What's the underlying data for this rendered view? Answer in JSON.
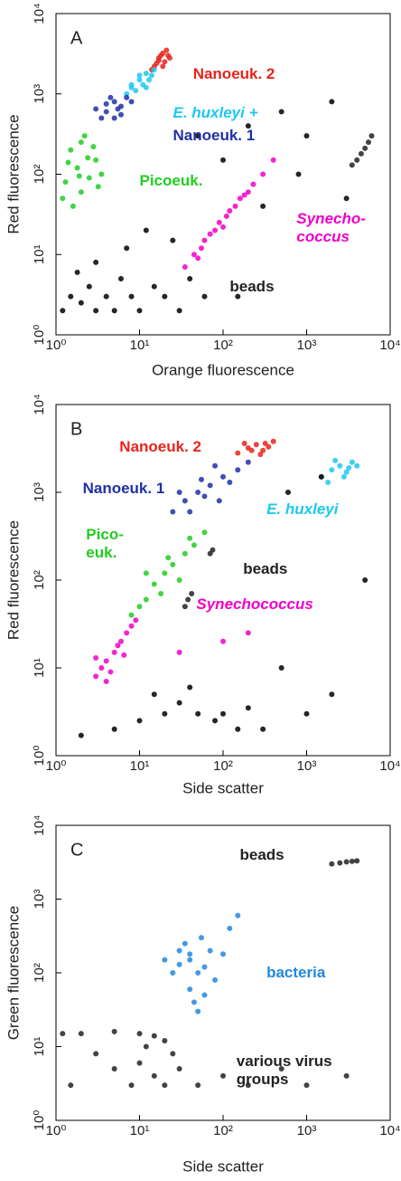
{
  "chart_data": [
    {
      "type": "scatter",
      "panel_label": "A",
      "xlabel": "Orange fluorescence",
      "ylabel": "Red fluorescence",
      "xscale": "log",
      "yscale": "log",
      "xlim": [
        1,
        10000
      ],
      "ylim": [
        1,
        10000
      ],
      "xticks": [
        {
          "value": 1,
          "label": "10⁰"
        },
        {
          "value": 10,
          "label": "10¹"
        },
        {
          "value": 100,
          "label": "10²"
        },
        {
          "value": 1000,
          "label": "10³"
        },
        {
          "value": 10000,
          "label": "10⁴"
        }
      ],
      "yticks": [
        {
          "value": 1,
          "label": "10⁰"
        },
        {
          "value": 10,
          "label": "10¹"
        },
        {
          "value": 100,
          "label": "10²"
        },
        {
          "value": 1000,
          "label": "10³"
        },
        {
          "value": 10000,
          "label": "10⁴"
        }
      ],
      "series": [
        {
          "name": "Nanoeuk. 2",
          "color": "#e8241c",
          "x": [
            15,
            17,
            19,
            20,
            16,
            18,
            22,
            14,
            21,
            17,
            19,
            23
          ],
          "y": [
            2200,
            2800,
            3200,
            2500,
            2400,
            3000,
            3000,
            2000,
            3500,
            2600,
            2200,
            2800
          ]
        },
        {
          "name": "E. huxleyi +",
          "color": "#1ec8f0",
          "font_style": "italic",
          "x": [
            8,
            10,
            12,
            9,
            11,
            14,
            7,
            13,
            10,
            15,
            8,
            12
          ],
          "y": [
            1300,
            1500,
            1800,
            1100,
            1300,
            1700,
            1000,
            1500,
            1700,
            2000,
            1200,
            1200
          ]
        },
        {
          "name": "Nanoeuk. 1",
          "color": "#2030a8",
          "x": [
            4,
            5,
            6,
            3.5,
            5,
            7,
            4.5,
            6,
            3,
            8,
            5.5,
            4
          ],
          "y": [
            600,
            800,
            700,
            500,
            500,
            900,
            900,
            550,
            650,
            800,
            650,
            750
          ]
        },
        {
          "name": "Picoeuk.",
          "color": "#22cc22",
          "x": [
            1.3,
            1.8,
            2.5,
            1.5,
            2.2,
            3,
            1.2,
            2,
            2.8,
            1.6,
            3.5,
            2.4,
            1.4,
            2,
            3.2,
            1.9
          ],
          "y": [
            80,
            120,
            90,
            200,
            300,
            150,
            50,
            60,
            220,
            40,
            100,
            160,
            140,
            250,
            70,
            95
          ]
        },
        {
          "name": "Synecho-coccus",
          "color": "#f000c8",
          "font_style": "italic",
          "x": [
            35,
            45,
            55,
            70,
            90,
            110,
            140,
            180,
            230,
            300,
            400,
            60,
            80,
            120,
            200,
            50,
            100,
            160
          ],
          "y": [
            7,
            10,
            12,
            18,
            25,
            30,
            40,
            55,
            75,
            100,
            150,
            15,
            20,
            35,
            60,
            9,
            22,
            50
          ]
        },
        {
          "name": "beads",
          "color": "#222222",
          "x": [
            3500,
            4000,
            4500,
            5000,
            5500,
            6000
          ],
          "y": [
            130,
            150,
            180,
            210,
            250,
            300
          ]
        },
        {
          "color": "#000000",
          "x": [
            1.2,
            1.5,
            2,
            3,
            2.5,
            4,
            5,
            6,
            1.8,
            8,
            3,
            10,
            15,
            20,
            30,
            7,
            12,
            25,
            40,
            50,
            100,
            200,
            500,
            300,
            800,
            1000,
            2000,
            3000,
            60,
            150
          ],
          "y": [
            2,
            3,
            2.5,
            2,
            4,
            3,
            2,
            5,
            6,
            3,
            8,
            2,
            4,
            3,
            2,
            12,
            20,
            15,
            5,
            300,
            150,
            400,
            600,
            40,
            100,
            300,
            800,
            50,
            3,
            3
          ]
        }
      ]
    },
    {
      "type": "scatter",
      "panel_label": "B",
      "xlabel": "Side scatter",
      "ylabel": "Red fluorescence",
      "xscale": "log",
      "yscale": "log",
      "xlim": [
        1,
        10000
      ],
      "ylim": [
        1,
        10000
      ],
      "xticks": [
        {
          "value": 1,
          "label": "10⁰"
        },
        {
          "value": 10,
          "label": "10¹"
        },
        {
          "value": 100,
          "label": "10²"
        },
        {
          "value": 1000,
          "label": "10³"
        },
        {
          "value": 10000,
          "label": "10⁴"
        }
      ],
      "yticks": [
        {
          "value": 1,
          "label": "10⁰"
        },
        {
          "value": 10,
          "label": "10¹"
        },
        {
          "value": 100,
          "label": "10²"
        },
        {
          "value": 1000,
          "label": "10³"
        },
        {
          "value": 10000,
          "label": "10⁴"
        }
      ],
      "series": [
        {
          "name": "Nanoeuk. 2",
          "color": "#e8241c",
          "x": [
            150,
            200,
            250,
            300,
            350,
            180,
            280,
            400,
            220,
            320
          ],
          "y": [
            2800,
            3200,
            3500,
            3000,
            3300,
            3600,
            2700,
            3800,
            3000,
            3600
          ]
        },
        {
          "name": "Nanoeuk. 1",
          "color": "#2030a8",
          "x": [
            25,
            35,
            50,
            70,
            100,
            150,
            40,
            60,
            90,
            120,
            80,
            200,
            30,
            55
          ],
          "y": [
            600,
            800,
            1000,
            1200,
            1500,
            1800,
            600,
            900,
            800,
            1300,
            2000,
            2200,
            1000,
            1400
          ]
        },
        {
          "name": "E. huxleyi",
          "color": "#1ec8f0",
          "font_style": "italic",
          "x": [
            1500,
            2000,
            2500,
            3000,
            3500,
            1800,
            2800,
            4000,
            2200,
            3200
          ],
          "y": [
            1500,
            1800,
            2000,
            1700,
            2200,
            1300,
            1500,
            2000,
            2300,
            1900
          ]
        },
        {
          "name": "Pico-euk.",
          "color": "#22cc22",
          "x": [
            8,
            12,
            15,
            20,
            25,
            35,
            45,
            60,
            18,
            30,
            12,
            40,
            22,
            10
          ],
          "y": [
            40,
            60,
            90,
            120,
            150,
            200,
            250,
            350,
            70,
            100,
            120,
            300,
            180,
            50
          ]
        },
        {
          "name": "beads",
          "color": "#222222",
          "x": [
            35,
            38,
            42,
            70,
            75
          ],
          "y": [
            50,
            60,
            70,
            200,
            220
          ]
        },
        {
          "name": "Synechococcus",
          "color": "#f000c8",
          "font_style": "italic",
          "x": [
            3,
            3.5,
            4,
            5,
            6,
            7,
            8,
            4.5,
            5.5,
            3,
            6.5,
            9,
            4,
            30,
            100,
            200
          ],
          "y": [
            8,
            10,
            12,
            15,
            20,
            25,
            30,
            9,
            18,
            13,
            14,
            35,
            7,
            15,
            20,
            25
          ]
        },
        {
          "color": "#000000",
          "x": [
            2,
            5,
            10,
            20,
            30,
            50,
            80,
            100,
            150,
            200,
            300,
            15,
            40,
            1000,
            2000,
            500,
            5000,
            1500,
            600
          ],
          "y": [
            1.7,
            2,
            2.5,
            3,
            4,
            3,
            2.5,
            3,
            2,
            3.5,
            2,
            5,
            6,
            3,
            5,
            10,
            100,
            1500,
            1000
          ]
        }
      ]
    },
    {
      "type": "scatter",
      "panel_label": "C",
      "xlabel": "Side scatter",
      "ylabel": "Green fluorescence",
      "xscale": "log",
      "yscale": "log",
      "xlim": [
        1,
        10000
      ],
      "ylim": [
        1,
        10000
      ],
      "xticks": [
        {
          "value": 1,
          "label": "10⁰"
        },
        {
          "value": 10,
          "label": "10¹"
        },
        {
          "value": 100,
          "label": "10²"
        },
        {
          "value": 1000,
          "label": "10³"
        },
        {
          "value": 10000,
          "label": "10⁴"
        }
      ],
      "yticks": [
        {
          "value": 1,
          "label": "10⁰"
        },
        {
          "value": 10,
          "label": "10¹"
        },
        {
          "value": 100,
          "label": "10²"
        },
        {
          "value": 1000,
          "label": "10³"
        },
        {
          "value": 10000,
          "label": "10⁴"
        }
      ],
      "series": [
        {
          "name": "beads",
          "color": "#222222",
          "x": [
            2000,
            2500,
            3000,
            3500,
            4000
          ],
          "y": [
            3000,
            3100,
            3200,
            3250,
            3300
          ]
        },
        {
          "name": "bacteria",
          "color": "#2288dd",
          "x": [
            20,
            30,
            40,
            50,
            60,
            40,
            45,
            50,
            35,
            70,
            100,
            25,
            55,
            80,
            120,
            150,
            30,
            60,
            40
          ],
          "y": [
            150,
            200,
            150,
            100,
            120,
            60,
            40,
            30,
            250,
            200,
            180,
            100,
            300,
            80,
            400,
            600,
            130,
            50,
            180
          ]
        },
        {
          "name": "various virus groups",
          "color": "#222222",
          "x": [
            1.2,
            2,
            5,
            10,
            15,
            20,
            3,
            5,
            10,
            15,
            8,
            20,
            30,
            50,
            100,
            200,
            500,
            1000,
            3000,
            1.5,
            12,
            25
          ],
          "y": [
            15,
            15,
            16,
            15,
            14,
            12,
            8,
            5,
            6,
            4,
            3,
            3,
            5,
            3,
            4,
            3,
            5,
            3,
            4,
            3,
            10,
            8
          ]
        }
      ]
    }
  ]
}
